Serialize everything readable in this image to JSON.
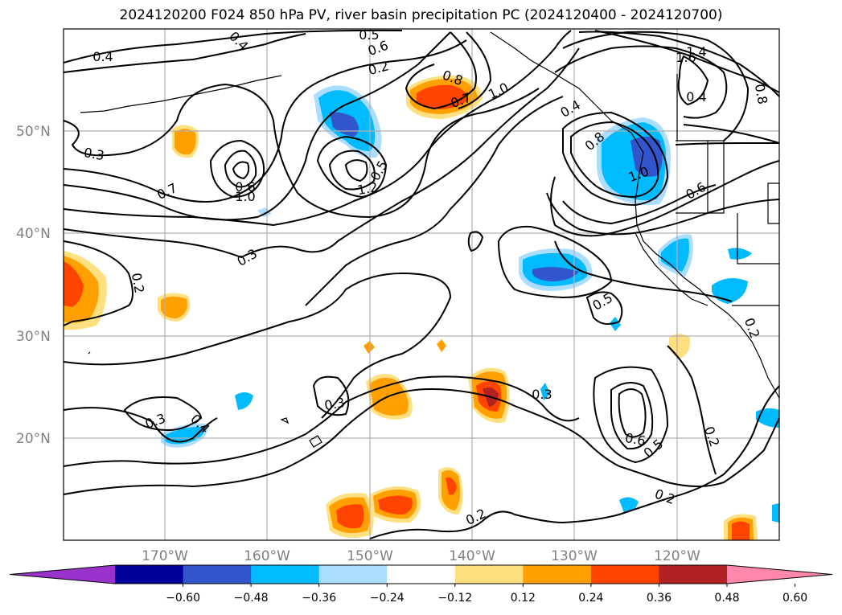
{
  "title": "2024120200 F024 850 hPa PV, river basin precipitation PC (2024120400 - 2024120700)",
  "lat_labels": [
    "50°N",
    "40°N",
    "30°N",
    "20°N"
  ],
  "lon_labels": [
    "170°W",
    "160°W",
    "150°W",
    "140°W",
    "130°W",
    "120°W"
  ],
  "colorbar": {
    "ticks": [
      "−0.60",
      "−0.48",
      "−0.36",
      "−0.24",
      "−0.12",
      "0.12",
      "0.24",
      "0.36",
      "0.48",
      "0.60"
    ],
    "colors": [
      "#9933cc",
      "#000099",
      "#3355cc",
      "#00bbff",
      "#aaddff",
      "#ffffff",
      "#ffe080",
      "#ffa000",
      "#ff4400",
      "#b22222",
      "#ff88aa"
    ]
  },
  "contour_labels": [
    "0.4",
    "0.4",
    "0.5",
    "0.6",
    "0.2",
    "0.3",
    "0.7",
    "0.6",
    "1.0",
    "0.8",
    "0.7",
    "1.0",
    "1.2",
    "0.5",
    "0.4",
    "0.8",
    "1.0",
    "1.4",
    "1.6",
    "0.4",
    "0.8",
    "0.6",
    "0.3",
    "0.2",
    "0.5",
    "0.3",
    "0.4",
    "0.3",
    "0.2",
    "0.3",
    "0.6",
    "0.5",
    "0.2",
    "0.2",
    "0.2"
  ]
}
